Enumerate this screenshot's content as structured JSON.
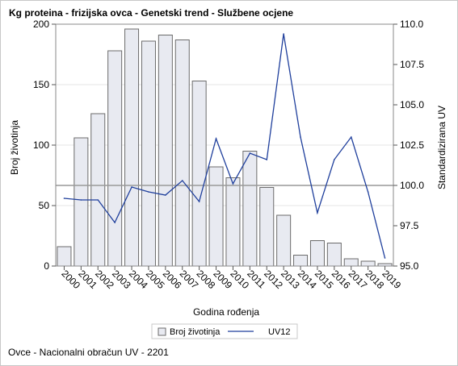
{
  "title": "Kg proteina - frizijska ovca - Genetski trend - Službene ocjene",
  "footnote": "Ovce - Nacionalni obračun UV - 2201",
  "chart_data": {
    "type": "bar",
    "x": [
      "2000",
      "2001",
      "2002",
      "2003",
      "2004",
      "2005",
      "2006",
      "2007",
      "2008",
      "2009",
      "2010",
      "2011",
      "2012",
      "2013",
      "2014",
      "2015",
      "2016",
      "2017",
      "2018",
      "2019"
    ],
    "xlabel": "Godina rođenja",
    "ylabel": "Broj životinja",
    "y2label": "Standardizirana UV",
    "ylim": [
      0,
      200
    ],
    "yticks": [
      "0",
      "50",
      "100",
      "150",
      "200"
    ],
    "y2lim": [
      95,
      110
    ],
    "y2ticks": [
      "95.0",
      "97.5",
      "100.0",
      "102.5",
      "105.0",
      "107.5",
      "110.0"
    ],
    "reference_line_y2": 100,
    "grid": true,
    "legend_position": "bottom",
    "series": [
      {
        "name": "Broj životinja",
        "type": "bar",
        "axis": "left",
        "color": "#e8eaf1",
        "edge_color": "#6b6b6b",
        "values": [
          16,
          106,
          126,
          178,
          196,
          186,
          191,
          187,
          153,
          82,
          73,
          95,
          65,
          42,
          9,
          21,
          19,
          6,
          4,
          2
        ]
      },
      {
        "name": "UV12",
        "type": "line",
        "axis": "right",
        "color": "#1f3f9c",
        "values": [
          99.2,
          99.1,
          99.1,
          97.7,
          99.9,
          99.6,
          99.4,
          100.3,
          99.0,
          102.9,
          100.1,
          102.0,
          101.6,
          109.4,
          103.0,
          98.3,
          101.6,
          103.0,
          99.6,
          95.5
        ]
      }
    ]
  }
}
